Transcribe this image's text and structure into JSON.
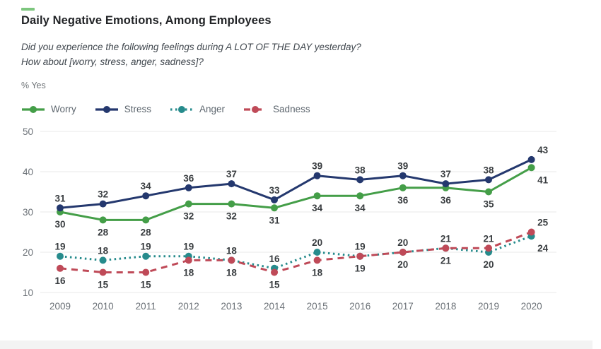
{
  "header": {
    "title": "Daily Negative Emotions, Among Employees",
    "subtitle_line1": "Did you experience the following feelings during A LOT OF THE DAY yesterday?",
    "subtitle_line2": "How about [worry, stress, anger, sadness]?",
    "unit_label": "% Yes"
  },
  "colors": {
    "accent_dash": "#7dc67e",
    "grid": "#eaeaea",
    "axis_text": "#6b7177",
    "data_label": "#393d40"
  },
  "chart_data": {
    "type": "line",
    "x": [
      2009,
      2010,
      2011,
      2012,
      2013,
      2014,
      2015,
      2016,
      2017,
      2018,
      2019,
      2020
    ],
    "series": [
      {
        "name": "Worry",
        "color": "#449e48",
        "dash": "solid",
        "values": [
          30,
          28,
          28,
          32,
          32,
          31,
          34,
          34,
          36,
          36,
          35,
          41
        ]
      },
      {
        "name": "Stress",
        "color": "#24386e",
        "dash": "solid",
        "values": [
          31,
          32,
          34,
          36,
          37,
          33,
          39,
          38,
          39,
          37,
          38,
          43
        ]
      },
      {
        "name": "Anger",
        "color": "#268b8c",
        "dash": "dotted",
        "values": [
          19,
          18,
          19,
          19,
          18,
          16,
          20,
          19,
          20,
          21,
          20,
          24
        ]
      },
      {
        "name": "Sadness",
        "color": "#bf4a58",
        "dash": "dashed",
        "values": [
          16,
          15,
          15,
          18,
          18,
          15,
          18,
          19,
          20,
          21,
          21,
          25
        ]
      }
    ],
    "title": "Daily Negative Emotions, Among Employees",
    "xlabel": "",
    "ylabel": "% Yes",
    "ylim": [
      10,
      50
    ],
    "yticks": [
      10,
      20,
      30,
      40,
      50
    ],
    "grid": "horizontal",
    "legend_position": "top-left",
    "data_labels": true,
    "label_pairs": [
      {
        "members": [
          0,
          1
        ],
        "default_above": 1
      },
      {
        "members": [
          2,
          3
        ],
        "default_above": 2
      }
    ]
  }
}
